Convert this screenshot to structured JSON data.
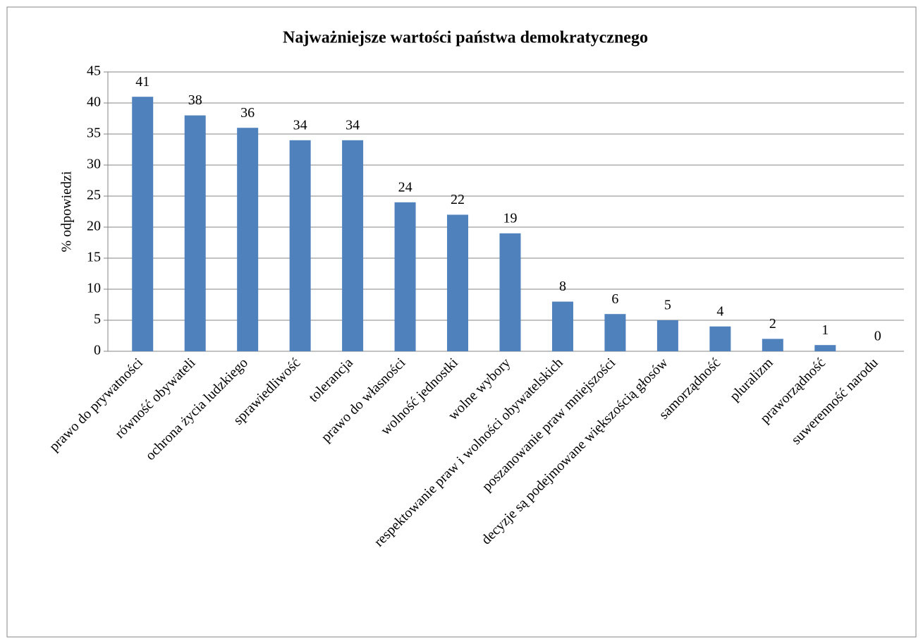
{
  "chart_data": {
    "type": "bar",
    "title": "Najważniejsze wartości państwa demokratycznego",
    "y_label": "% odpowiedzi",
    "categories": [
      "prawo do prywatności",
      "równość obywateli",
      "ochrona życia ludzkiego",
      "sprawiedliwość",
      "tolerancja",
      "prawo do własności",
      "wolność jednostki",
      "wolne wybory",
      "respektowanie praw i wolności obywatelskich",
      "poszanowanie praw mniejszości",
      "decyzje są podejmowane większością głosów",
      "samorządność",
      "pluralizm",
      "praworządność",
      "suwerenność narodu"
    ],
    "values": [
      41,
      38,
      36,
      34,
      34,
      24,
      22,
      19,
      8,
      6,
      5,
      4,
      2,
      1,
      0
    ],
    "color": "#4f81bd",
    "ylim": [
      0,
      45
    ],
    "yticks": [
      0,
      5,
      10,
      15,
      20,
      25,
      30,
      35,
      40,
      45
    ],
    "grid": true
  }
}
